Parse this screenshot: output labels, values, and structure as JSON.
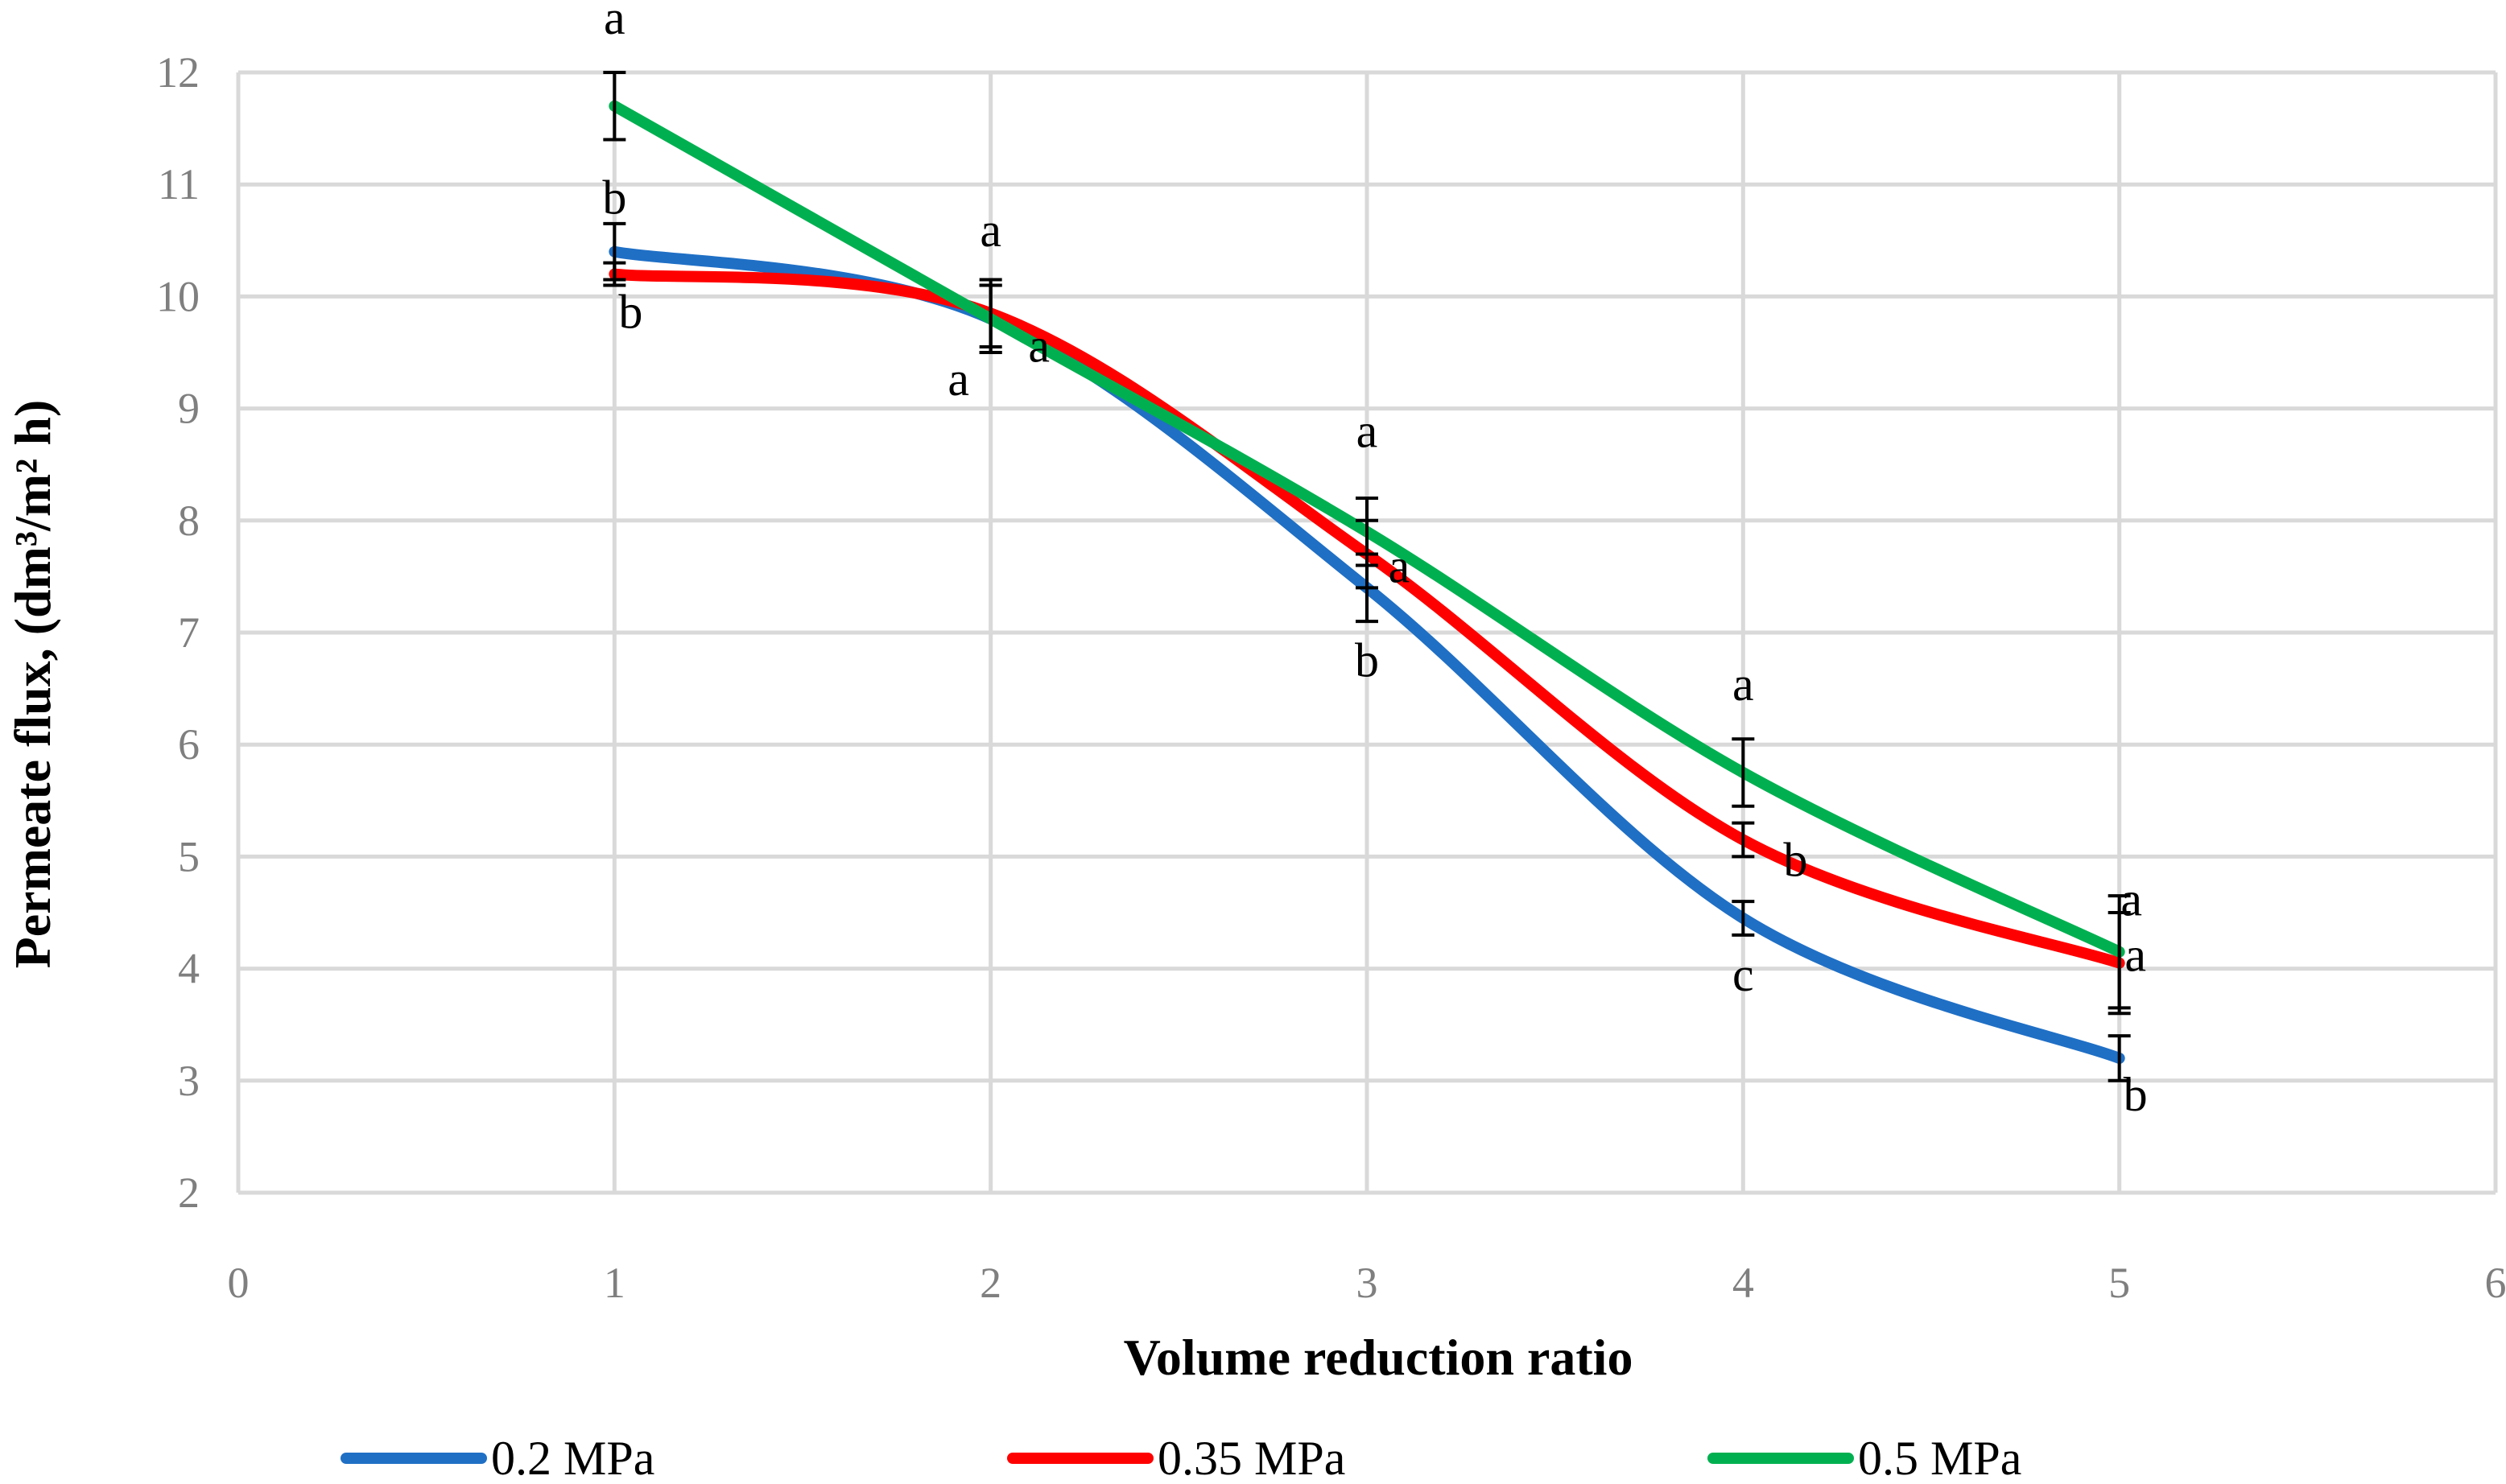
{
  "chart_data": {
    "type": "line",
    "title": "",
    "xlabel": "Volume reduction ratio",
    "ylabel": "Permeate flux, (dm³/m² h)",
    "xlim": [
      0,
      6
    ],
    "ylim": [
      2,
      12
    ],
    "x_ticks": [
      "0",
      "1",
      "2",
      "3",
      "4",
      "5",
      "6"
    ],
    "y_ticks": [
      "2",
      "3",
      "4",
      "5",
      "6",
      "7",
      "8",
      "9",
      "10",
      "11",
      "12"
    ],
    "grid": true,
    "legend_position": "bottom",
    "x": [
      1,
      2,
      3,
      4,
      5
    ],
    "series": [
      {
        "name": "0.2 MPa",
        "color": "#1f6fc5",
        "values": [
          10.4,
          9.8,
          7.4,
          4.45,
          3.2
        ],
        "errors": [
          0.25,
          0.3,
          0.3,
          0.15,
          0.2
        ],
        "letters": [
          "b",
          "a",
          "b",
          "c",
          "b"
        ]
      },
      {
        "name": "0.35 MPa",
        "color": "#ff0000",
        "values": [
          10.2,
          9.85,
          7.7,
          5.15,
          4.05
        ],
        "errors": [
          0.1,
          0.3,
          0.3,
          0.15,
          0.45
        ],
        "letters": [
          "b",
          "a",
          "a",
          "b",
          "a"
        ]
      },
      {
        "name": "0.5 MPa",
        "color": "#00b050",
        "values": [
          11.7,
          9.8,
          7.9,
          5.75,
          4.15
        ],
        "errors": [
          0.3,
          0.3,
          0.3,
          0.3,
          0.5
        ],
        "letters": [
          "a",
          "a",
          "a",
          "a",
          "a"
        ]
      }
    ]
  }
}
